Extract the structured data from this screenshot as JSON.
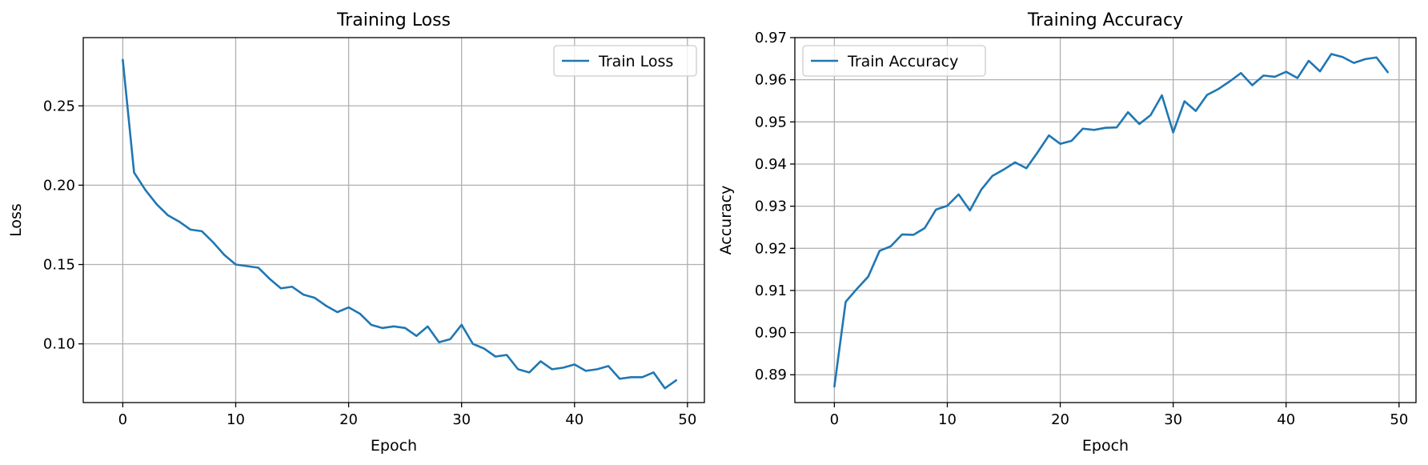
{
  "chart_data": [
    {
      "type": "line",
      "title": "Training Loss",
      "xlabel": "Epoch",
      "ylabel": "Loss",
      "xlim": [
        -3.5,
        51.5
      ],
      "ylim": [
        0.063,
        0.293
      ],
      "xticks": [
        0,
        10,
        20,
        30,
        40,
        50
      ],
      "xtick_labels": [
        "0",
        "10",
        "20",
        "30",
        "40",
        "50"
      ],
      "yticks": [
        0.1,
        0.15,
        0.2,
        0.25
      ],
      "ytick_labels": [
        "0.10",
        "0.15",
        "0.20",
        "0.25"
      ],
      "grid": true,
      "legend_position": "upper right",
      "colors": {
        "series": "#1f77b4",
        "grid": "#b0b0b0"
      },
      "series": [
        {
          "name": "Train Loss",
          "x": [
            0,
            1,
            2,
            3,
            4,
            5,
            6,
            7,
            8,
            9,
            10,
            11,
            12,
            13,
            14,
            15,
            16,
            17,
            18,
            19,
            20,
            21,
            22,
            23,
            24,
            25,
            26,
            27,
            28,
            29,
            30,
            31,
            32,
            33,
            34,
            35,
            36,
            37,
            38,
            39,
            40,
            41,
            42,
            43,
            44,
            45,
            46,
            47,
            48,
            49
          ],
          "y": [
            0.279,
            0.208,
            0.197,
            0.188,
            0.181,
            0.177,
            0.172,
            0.171,
            0.164,
            0.156,
            0.15,
            0.149,
            0.148,
            0.141,
            0.135,
            0.136,
            0.131,
            0.129,
            0.124,
            0.12,
            0.123,
            0.119,
            0.112,
            0.11,
            0.111,
            0.11,
            0.105,
            0.111,
            0.101,
            0.103,
            0.112,
            0.1,
            0.097,
            0.092,
            0.093,
            0.084,
            0.082,
            0.089,
            0.084,
            0.085,
            0.087,
            0.083,
            0.084,
            0.086,
            0.078,
            0.079,
            0.079,
            0.082,
            0.072,
            0.077
          ]
        }
      ]
    },
    {
      "type": "line",
      "title": "Training Accuracy",
      "xlabel": "Epoch",
      "ylabel": "Accuracy",
      "xlim": [
        -3.5,
        51.5
      ],
      "ylim": [
        0.8834,
        0.97
      ],
      "xticks": [
        0,
        10,
        20,
        30,
        40,
        50
      ],
      "xtick_labels": [
        "0",
        "10",
        "20",
        "30",
        "40",
        "50"
      ],
      "yticks": [
        0.89,
        0.9,
        0.91,
        0.92,
        0.93,
        0.94,
        0.95,
        0.96,
        0.97
      ],
      "ytick_labels": [
        "0.89",
        "0.90",
        "0.91",
        "0.92",
        "0.93",
        "0.94",
        "0.95",
        "0.96",
        "0.97"
      ],
      "grid": true,
      "legend_position": "upper left",
      "colors": {
        "series": "#1f77b4",
        "grid": "#b0b0b0"
      },
      "series": [
        {
          "name": "Train Accuracy",
          "x": [
            0,
            1,
            2,
            3,
            4,
            5,
            6,
            7,
            8,
            9,
            10,
            11,
            12,
            13,
            14,
            15,
            16,
            17,
            18,
            19,
            20,
            21,
            22,
            23,
            24,
            25,
            26,
            27,
            28,
            29,
            30,
            31,
            32,
            33,
            34,
            35,
            36,
            37,
            38,
            39,
            40,
            41,
            42,
            43,
            44,
            45,
            46,
            47,
            48,
            49
          ],
          "y": [
            0.8872,
            0.9073,
            0.9104,
            0.9133,
            0.9194,
            0.9205,
            0.9233,
            0.9232,
            0.9248,
            0.9292,
            0.9301,
            0.9328,
            0.929,
            0.9339,
            0.9372,
            0.9387,
            0.9404,
            0.939,
            0.9428,
            0.9468,
            0.9448,
            0.9455,
            0.9484,
            0.9481,
            0.9486,
            0.9487,
            0.9523,
            0.9495,
            0.9516,
            0.9563,
            0.9475,
            0.9549,
            0.9526,
            0.9564,
            0.9578,
            0.9596,
            0.9616,
            0.9587,
            0.961,
            0.9607,
            0.9619,
            0.9604,
            0.9645,
            0.962,
            0.9661,
            0.9654,
            0.964,
            0.9649,
            0.9653,
            0.9618
          ]
        }
      ]
    }
  ]
}
